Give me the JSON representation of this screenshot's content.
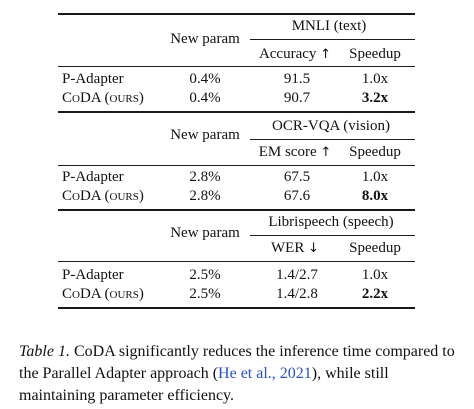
{
  "table": {
    "sections": [
      {
        "task_header": "MNLI (text)",
        "param_header": "New param",
        "metric_header": "Accuracy",
        "metric_arrow": "↑",
        "speedup_header": "Speedup",
        "rows": [
          {
            "method": "P-Adapter",
            "param": "0.4%",
            "metric": "91.5",
            "speedup": "1.0x",
            "bold_speedup": false
          },
          {
            "method": "CoDA (ours)",
            "param": "0.4%",
            "metric": "90.7",
            "speedup": "3.2x",
            "bold_speedup": true
          }
        ]
      },
      {
        "task_header": "OCR-VQA (vision)",
        "param_header": "New param",
        "metric_header": "EM score",
        "metric_arrow": "↑",
        "speedup_header": "Speedup",
        "rows": [
          {
            "method": "P-Adapter",
            "param": "2.8%",
            "metric": "67.5",
            "speedup": "1.0x",
            "bold_speedup": false
          },
          {
            "method": "CoDA (ours)",
            "param": "2.8%",
            "metric": "67.6",
            "speedup": "8.0x",
            "bold_speedup": true
          }
        ]
      },
      {
        "task_header": "Librispeech (speech)",
        "param_header": "New param",
        "metric_header": "WER",
        "metric_arrow": "↓",
        "speedup_header": "Speedup",
        "rows": [
          {
            "method": "P-Adapter",
            "param": "2.5%",
            "metric": "1.4/2.7",
            "speedup": "1.0x",
            "bold_speedup": false
          },
          {
            "method": "CoDA (ours)",
            "param": "2.5%",
            "metric": "1.4/2.8",
            "speedup": "2.2x",
            "bold_speedup": true
          }
        ]
      }
    ]
  },
  "caption": {
    "label": "Table 1.",
    "text_before_cite": " CoDA significantly reduces the inference time compared to the Parallel Adapter approach (",
    "cite": "He et al., 2021",
    "text_after_cite": "), while still maintaining parameter efficiency."
  }
}
